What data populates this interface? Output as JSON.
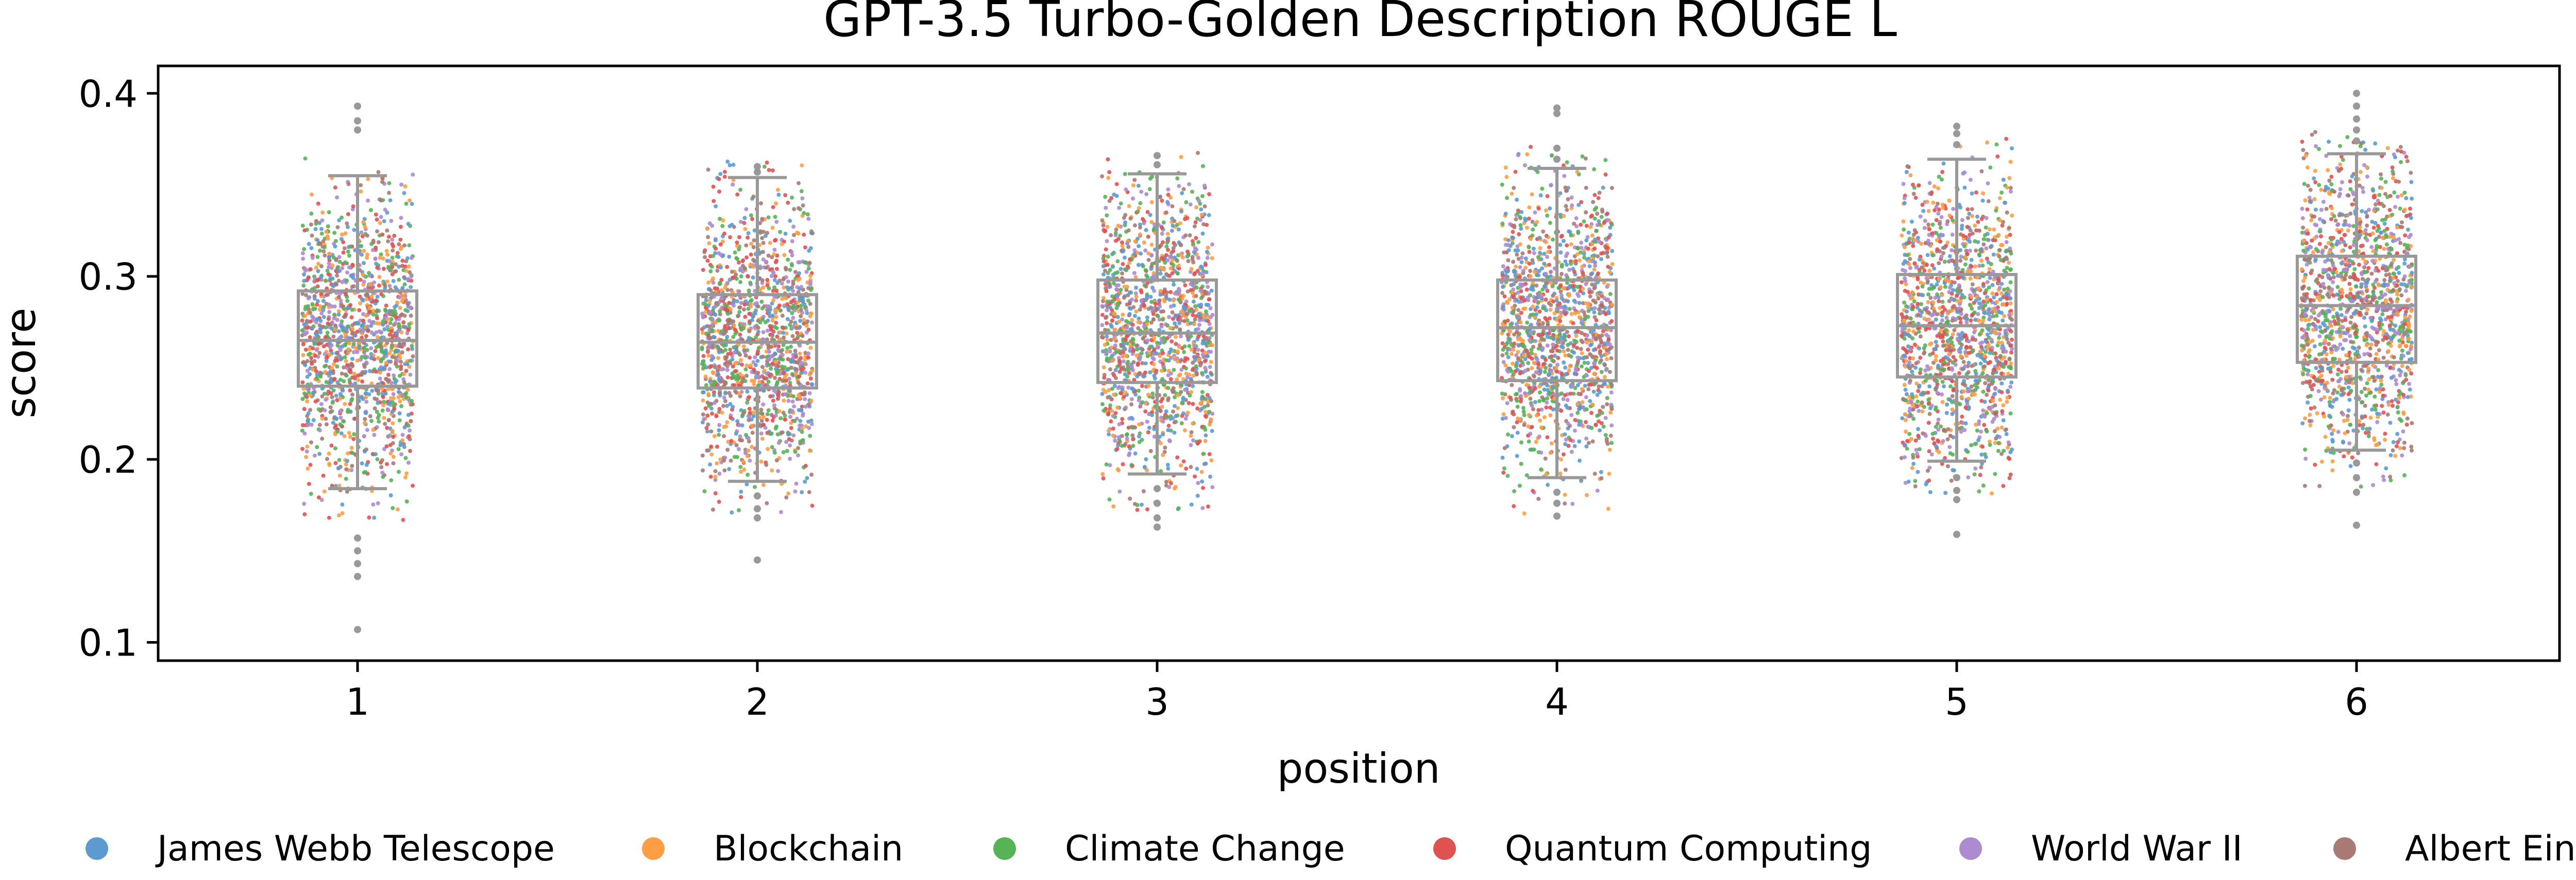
{
  "chart_data": {
    "type": "box-strip",
    "title": "GPT-3.5 Turbo-Golden Description ROUGE L",
    "xlabel": "position",
    "ylabel": "score",
    "categories": [
      "1",
      "2",
      "3",
      "4",
      "5",
      "6"
    ],
    "ylim": [
      0.09,
      0.415
    ],
    "yticks": [
      0.1,
      0.2,
      0.3,
      0.4
    ],
    "ytick_labels": [
      "0.1",
      "0.2",
      "0.3",
      "0.4"
    ],
    "grid": false,
    "legend_placement": "bottom",
    "box_color": "#999999",
    "boxes": [
      {
        "position": "1",
        "whisker_low": 0.184,
        "q1": 0.24,
        "median": 0.265,
        "q3": 0.292,
        "whisker_high": 0.355,
        "fliers": [
          0.393,
          0.385,
          0.38,
          0.157,
          0.15,
          0.143,
          0.136,
          0.107
        ]
      },
      {
        "position": "2",
        "whisker_low": 0.188,
        "q1": 0.239,
        "median": 0.264,
        "q3": 0.29,
        "whisker_high": 0.354,
        "fliers": [
          0.36,
          0.357,
          0.18,
          0.173,
          0.168,
          0.145
        ]
      },
      {
        "position": "3",
        "whisker_low": 0.192,
        "q1": 0.242,
        "median": 0.269,
        "q3": 0.298,
        "whisker_high": 0.356,
        "fliers": [
          0.366,
          0.361,
          0.184,
          0.176,
          0.168,
          0.163
        ]
      },
      {
        "position": "4",
        "whisker_low": 0.19,
        "q1": 0.243,
        "median": 0.272,
        "q3": 0.298,
        "whisker_high": 0.359,
        "fliers": [
          0.392,
          0.389,
          0.37,
          0.364,
          0.182,
          0.176,
          0.169
        ]
      },
      {
        "position": "5",
        "whisker_low": 0.199,
        "q1": 0.245,
        "median": 0.273,
        "q3": 0.301,
        "whisker_high": 0.364,
        "fliers": [
          0.382,
          0.378,
          0.372,
          0.19,
          0.183,
          0.178,
          0.159
        ]
      },
      {
        "position": "6",
        "whisker_low": 0.205,
        "q1": 0.253,
        "median": 0.284,
        "q3": 0.311,
        "whisker_high": 0.367,
        "fliers": [
          0.4,
          0.393,
          0.386,
          0.38,
          0.374,
          0.198,
          0.19,
          0.182,
          0.164
        ]
      }
    ],
    "series": [
      {
        "name": "James Webb Telescope",
        "color": "#5b9bd0"
      },
      {
        "name": "Blockchain",
        "color": "#ff9e45"
      },
      {
        "name": "Climate Change",
        "color": "#56b356"
      },
      {
        "name": "Quantum Computing",
        "color": "#df5252"
      },
      {
        "name": "World War II",
        "color": "#ad8bd0"
      },
      {
        "name": "Albert Einstein",
        "color": "#a87a73"
      }
    ]
  }
}
